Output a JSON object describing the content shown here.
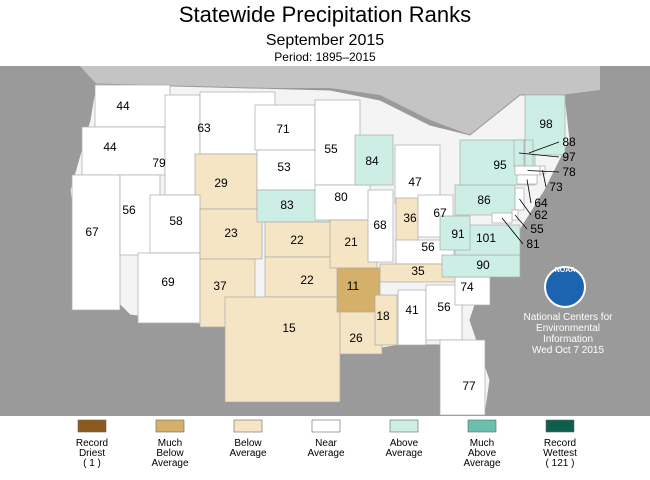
{
  "header": {
    "title": "Statewide Precipitation Ranks",
    "subtitle": "September 2015",
    "period": "Period: 1895–2015"
  },
  "map": {
    "states": [
      {
        "rank": 44,
        "category": 3
      },
      {
        "rank": 44,
        "category": 3
      },
      {
        "rank": 67,
        "category": 3
      },
      {
        "rank": 56,
        "category": 3
      },
      {
        "rank": 79,
        "category": 3
      },
      {
        "rank": 63,
        "category": 3
      },
      {
        "rank": 29,
        "category": 2
      },
      {
        "rank": 58,
        "category": 3
      },
      {
        "rank": 69,
        "category": 3
      },
      {
        "rank": 23,
        "category": 2
      },
      {
        "rank": 37,
        "category": 2
      },
      {
        "rank": 71,
        "category": 3
      },
      {
        "rank": 53,
        "category": 3
      },
      {
        "rank": 83,
        "category": 4
      },
      {
        "rank": 22,
        "category": 2
      },
      {
        "rank": 22,
        "category": 2
      },
      {
        "rank": 15,
        "category": 2
      },
      {
        "rank": 55,
        "category": 3
      },
      {
        "rank": 80,
        "category": 3
      },
      {
        "rank": 21,
        "category": 2
      },
      {
        "rank": 11,
        "category": 1
      },
      {
        "rank": 26,
        "category": 2
      },
      {
        "rank": 84,
        "category": 4
      },
      {
        "rank": 68,
        "category": 3
      },
      {
        "rank": 18,
        "category": 2
      },
      {
        "rank": 47,
        "category": 3
      },
      {
        "rank": 36,
        "category": 2
      },
      {
        "rank": 67,
        "category": 3
      },
      {
        "rank": 56,
        "category": 3
      },
      {
        "rank": 35,
        "category": 2
      },
      {
        "rank": 41,
        "category": 3
      },
      {
        "rank": 56,
        "category": 3
      },
      {
        "rank": 77,
        "category": 3
      },
      {
        "rank": 74,
        "category": 3
      },
      {
        "rank": 90,
        "category": 4
      },
      {
        "rank": 101,
        "category": 4
      },
      {
        "rank": 91,
        "category": 4
      },
      {
        "rank": 86,
        "category": 4
      },
      {
        "rank": 95,
        "category": 4
      },
      {
        "rank": 98,
        "category": 4
      },
      {
        "rank": 88,
        "category": 4
      },
      {
        "rank": 97,
        "category": 4
      },
      {
        "rank": 78,
        "category": 3
      },
      {
        "rank": 73,
        "category": 3
      },
      {
        "rank": 64,
        "category": 3
      },
      {
        "rank": 62,
        "category": 3
      },
      {
        "rank": 55,
        "category": 3
      },
      {
        "rank": 81,
        "category": 3
      }
    ]
  },
  "legend": [
    {
      "lines": [
        "Record",
        "Driest",
        "( 1 )"
      ],
      "color": "#8b5a1e"
    },
    {
      "lines": [
        "Much",
        "Below",
        "Average"
      ],
      "color": "#d5b06b"
    },
    {
      "lines": [
        "Below",
        "Average"
      ],
      "color": "#f5e5c4"
    },
    {
      "lines": [
        "Near",
        "Average"
      ],
      "color": "#ffffff"
    },
    {
      "lines": [
        "Above",
        "Average"
      ],
      "color": "#cdeee5"
    },
    {
      "lines": [
        "Much",
        "Above",
        "Average"
      ],
      "color": "#6bbfac"
    },
    {
      "lines": [
        "Record",
        "Wettest",
        "( 121 )"
      ],
      "color": "#0e5e4e"
    }
  ],
  "logo": "NOAA",
  "credit": [
    "National Centers for",
    "Environmental",
    "Information",
    "Wed Oct  7 2015"
  ]
}
